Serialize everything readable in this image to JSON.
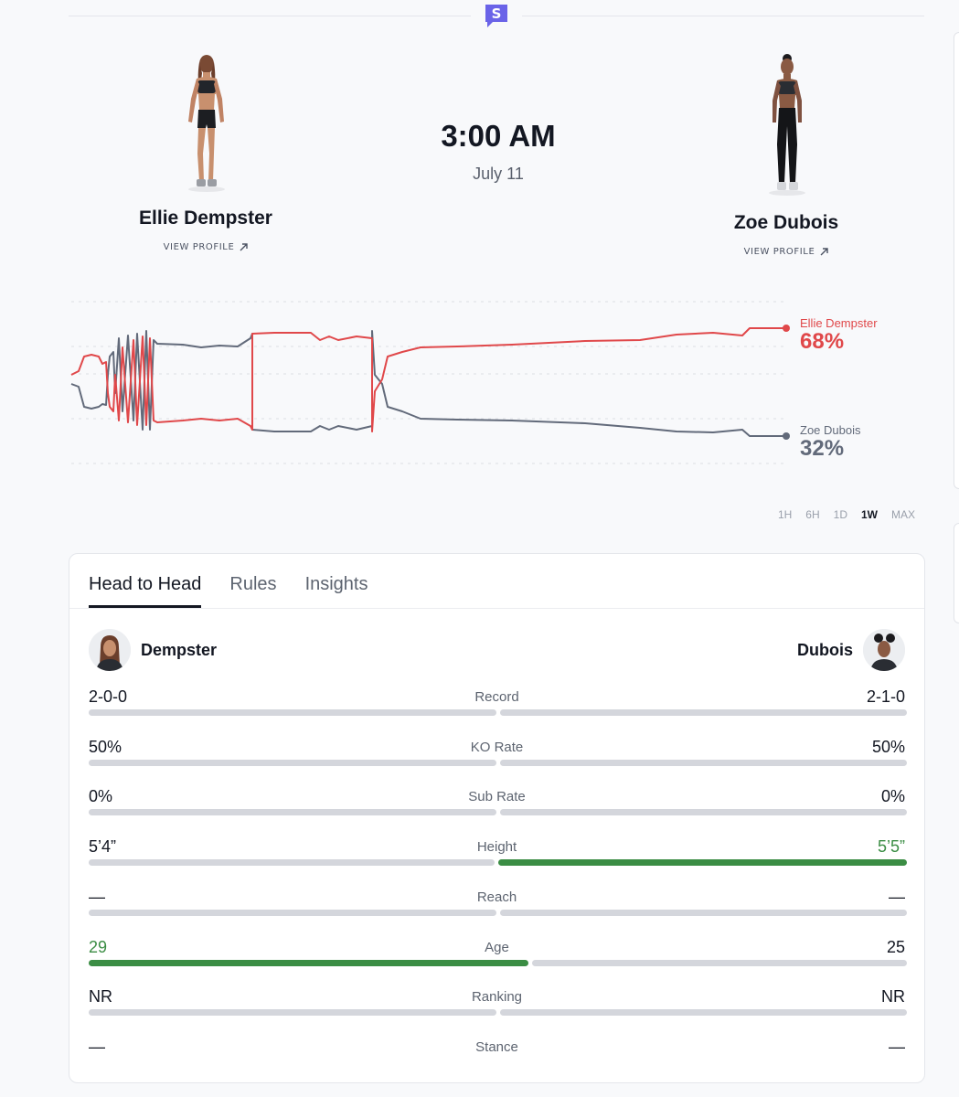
{
  "event": {
    "time": "3:00 AM",
    "date": "July 11"
  },
  "fighters": {
    "left": {
      "name": "Ellie Dempster",
      "short": "Dempster",
      "link": "VIEW PROFILE"
    },
    "right": {
      "name": "Zoe Dubois",
      "short": "Dubois",
      "link": "VIEW PROFILE"
    }
  },
  "odds_chart": {
    "left_label": "Ellie Dempster",
    "left_pct": "68%",
    "right_label": "Zoe Dubois",
    "right_pct": "32%",
    "left_color": "#e0484a",
    "right_color": "#626a7a"
  },
  "chart_data": {
    "type": "line",
    "title": "",
    "y_unit": "percent",
    "ylim": [
      0,
      100
    ],
    "series": [
      {
        "name": "Ellie Dempster",
        "final": 68
      },
      {
        "name": "Zoe Dubois",
        "final": 32
      }
    ]
  },
  "timeframes": [
    "1H",
    "6H",
    "1D",
    "1W",
    "MAX"
  ],
  "active_timeframe": "1W",
  "tabs": [
    "Head to Head",
    "Rules",
    "Insights"
  ],
  "active_tab": "Head to Head",
  "stats": [
    {
      "label": "Record",
      "left": "2-0-0",
      "right": "2-1-0",
      "winner": "none"
    },
    {
      "label": "KO Rate",
      "left": "50%",
      "right": "50%",
      "winner": "none"
    },
    {
      "label": "Sub Rate",
      "left": "0%",
      "right": "0%",
      "winner": "none"
    },
    {
      "label": "Height",
      "left": "5’4”",
      "right": "5’5”",
      "winner": "right"
    },
    {
      "label": "Reach",
      "left": "—",
      "right": "—",
      "winner": "none"
    },
    {
      "label": "Age",
      "left": "29",
      "right": "25",
      "winner": "left"
    },
    {
      "label": "Ranking",
      "left": "NR",
      "right": "NR",
      "winner": "none"
    },
    {
      "label": "Stance",
      "left": "—",
      "right": "—",
      "winner": "none"
    }
  ],
  "colors": {
    "win": "#3b8d44",
    "bar": "#d4d6dc",
    "brand": "#6a63e8"
  }
}
